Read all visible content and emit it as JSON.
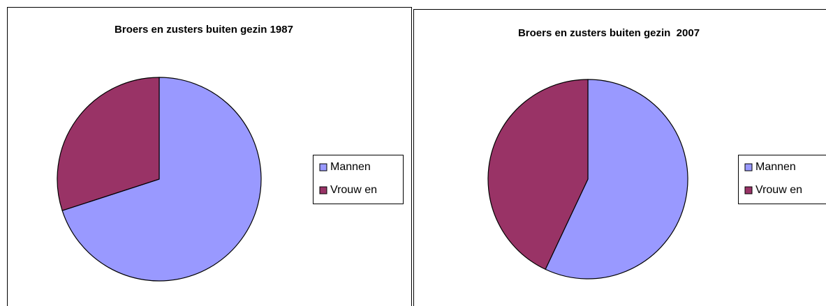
{
  "chart_data": [
    {
      "type": "pie",
      "title": "Broers en zusters buiten gezin 1987",
      "categories": [
        "Mannen",
        "Vrouw en"
      ],
      "values": [
        70,
        30
      ],
      "colors": [
        "#9999ff",
        "#993366"
      ],
      "legend": "right"
    },
    {
      "type": "pie",
      "title": "Broers en zusters buiten gezin  2007",
      "categories": [
        "Mannen",
        "Vrouw en"
      ],
      "values": [
        57,
        43
      ],
      "colors": [
        "#9999ff",
        "#993366"
      ],
      "legend": "right"
    }
  ]
}
